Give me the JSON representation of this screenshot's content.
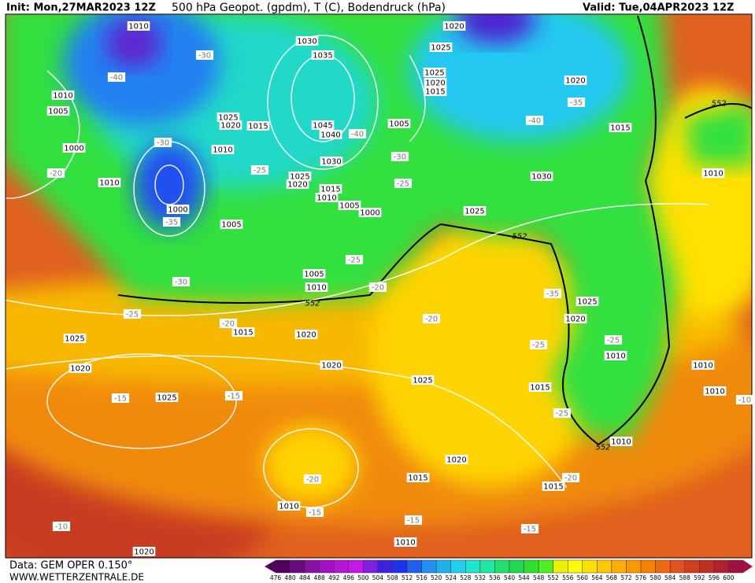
{
  "header": {
    "init": "Init: Mon,27MAR2023 12Z",
    "title": "500 hPa Geopot. (gpdm), T (C), Bodendruck (hPa)",
    "valid": "Valid: Tue,04APR2023 12Z"
  },
  "pressure_labels": [
    1010,
    1020,
    1030,
    1025,
    1035,
    1025,
    1020,
    1015,
    1010,
    1005,
    1020,
    1025,
    1020,
    1015,
    1045,
    1040,
    1005,
    1015,
    1000,
    1010,
    1030,
    1025,
    1020,
    1015,
    1010,
    1030,
    1010,
    1010,
    1005,
    1000,
    1000,
    1025,
    1005,
    1005,
    1010,
    1025,
    1020,
    1015,
    1020,
    1025,
    1010,
    1010,
    1020,
    1020,
    1025,
    1015,
    1010,
    1025,
    1010,
    1020,
    1015,
    1015,
    1010,
    1010,
    1020
  ],
  "temperature_labels": [
    -30,
    -40,
    -35,
    -40,
    -30,
    -40,
    -30,
    -25,
    -25,
    -35,
    -20,
    -25,
    -30,
    -20,
    -20,
    -25,
    -20,
    -35,
    -25,
    -25,
    -15,
    -15,
    -25,
    -20,
    -15,
    -20,
    -10,
    -15,
    -15,
    -10
  ],
  "contour_552_labels": [
    552,
    552,
    552,
    552
  ],
  "colorbar": {
    "labels": [
      476,
      480,
      484,
      488,
      492,
      496,
      500,
      504,
      508,
      512,
      516,
      520,
      524,
      528,
      532,
      536,
      540,
      544,
      548,
      552,
      556,
      560,
      564,
      568,
      572,
      576,
      580,
      584,
      588,
      592,
      596,
      600
    ],
    "colors": [
      "#50005a",
      "#6a0a80",
      "#8a10a0",
      "#a010c0",
      "#b814d8",
      "#c818e8",
      "#8020e0",
      "#4020e0",
      "#2030f0",
      "#2060f0",
      "#2090f0",
      "#20b0f0",
      "#20d0f0",
      "#20e8d0",
      "#20e8a0",
      "#20e070",
      "#20d850",
      "#30e030",
      "#50f020",
      "#e8f000",
      "#ffff00",
      "#ffe000",
      "#ffc800",
      "#ffb000",
      "#ff9800",
      "#f88000",
      "#f06810",
      "#e05020",
      "#d04020",
      "#c03020",
      "#b02030",
      "#a01040"
    ]
  },
  "footer": {
    "data": "Data: GEM OPER 0.150°",
    "site": "WWW.WETTERZENTRALE.DE"
  }
}
